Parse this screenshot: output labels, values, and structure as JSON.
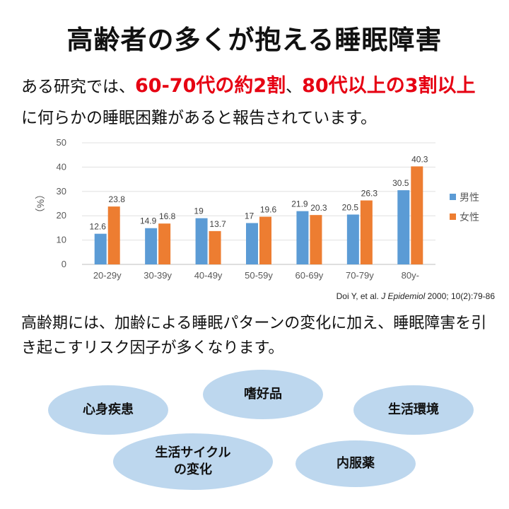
{
  "title": "高齢者の多くが抱える睡眠障害",
  "intro": {
    "t1": "ある研究では、",
    "h1": "60-70代の約2割",
    "t2": "、",
    "h2": "80代以上の3割以上",
    "t3": "に何らかの睡眠困難があると報告されています。"
  },
  "chart_data": {
    "type": "bar",
    "categories": [
      "20-29y",
      "30-39y",
      "40-49y",
      "50-59y",
      "60-69y",
      "70-79y",
      "80y-"
    ],
    "series": [
      {
        "name": "男性",
        "color": "#5b9bd5",
        "values": [
          12.6,
          14.9,
          19,
          17,
          21.9,
          20.5,
          30.5
        ]
      },
      {
        "name": "女性",
        "color": "#ed7d31",
        "values": [
          23.8,
          16.8,
          13.7,
          19.6,
          20.3,
          26.3,
          40.3
        ]
      }
    ],
    "ylabel": "（%）",
    "yticks": [
      0,
      10,
      20,
      30,
      40,
      50
    ],
    "ylim": [
      0,
      50
    ],
    "grid": true,
    "legend": "right"
  },
  "citation": {
    "authors": "Doi Y, et al. ",
    "journal": "J Epidemiol",
    "details": " 2000; 10(2):79-86"
  },
  "description": "高齢期には、加齢による睡眠パターンの変化に加え、睡眠障害を引き起こすリスク因子が多くなります。",
  "factors": {
    "shinshin": "心身疾患",
    "shikohin": "嗜好品",
    "seikatsu_kankyo": "生活環境",
    "cycle": "生活サイクル\nの変化",
    "naifukuyaku": "内服薬"
  }
}
